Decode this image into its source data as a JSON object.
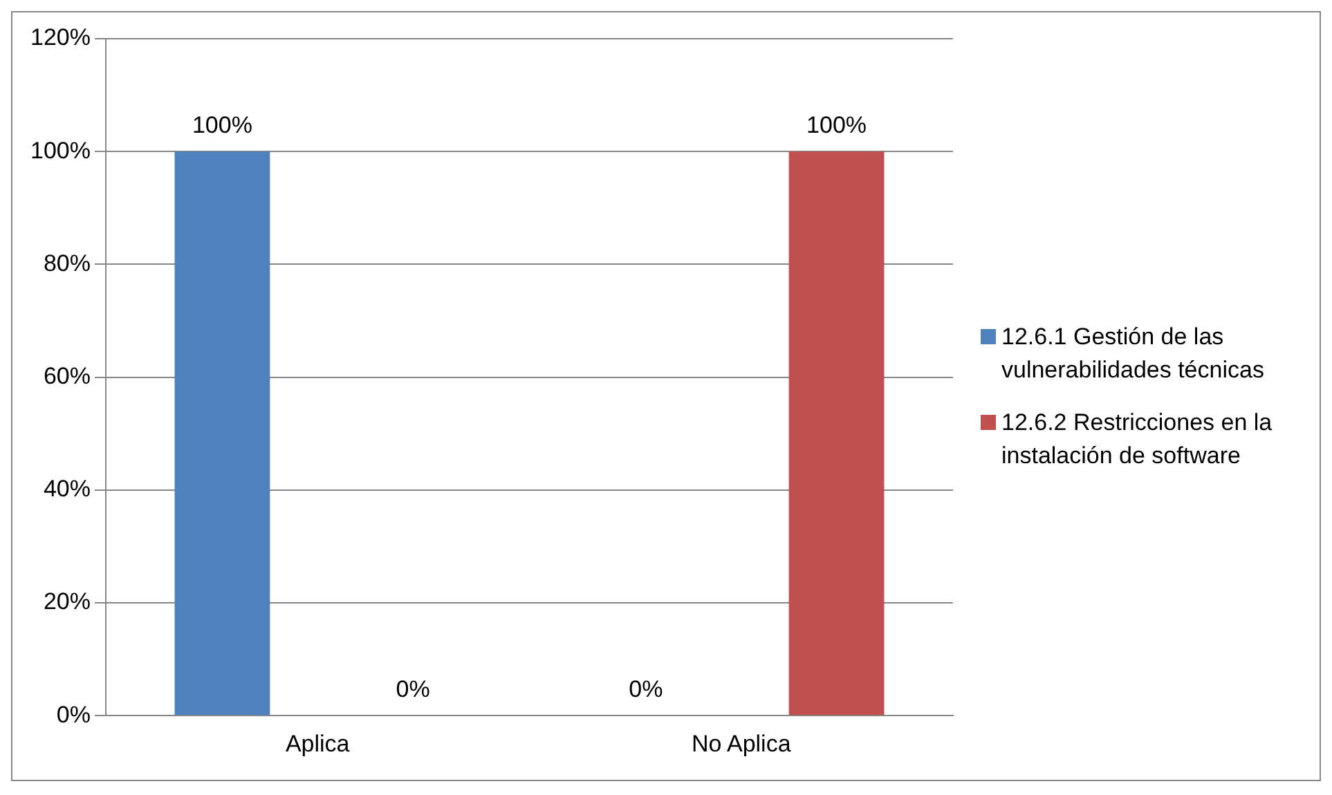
{
  "chart_data": {
    "type": "bar",
    "categories": [
      "Aplica",
      "No Aplica"
    ],
    "series": [
      {
        "name": "12.6.1 Gestión de las vulnerabilidades técnicas",
        "color": "#4f81bd",
        "values": [
          100,
          0
        ]
      },
      {
        "name": "12.6.2 Restricciones en la instalación de software",
        "color": "#c0504d",
        "values": [
          0,
          100
        ]
      }
    ],
    "ylim": [
      0,
      120
    ],
    "yticks": [
      {
        "value": 0,
        "label": "0%"
      },
      {
        "value": 20,
        "label": "20%"
      },
      {
        "value": 40,
        "label": "40%"
      },
      {
        "value": 60,
        "label": "60%"
      },
      {
        "value": 80,
        "label": "80%"
      },
      {
        "value": 100,
        "label": "100%"
      },
      {
        "value": 120,
        "label": "120%"
      }
    ],
    "value_labels": [
      [
        "100%",
        "0%"
      ],
      [
        "0%",
        "100%"
      ]
    ],
    "grid": "y",
    "legend": "right"
  }
}
